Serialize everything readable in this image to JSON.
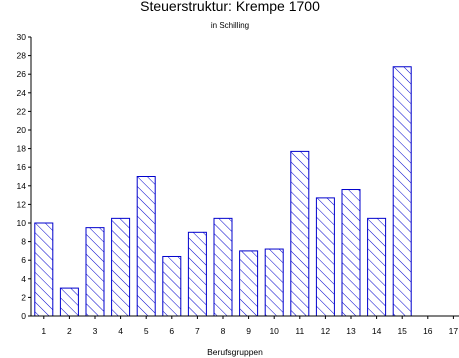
{
  "chart_data": {
    "type": "bar",
    "title": "Steuerstruktur: Krempe 1700",
    "subtitle": "in Schilling",
    "xlabel": "Berufsgruppen",
    "ylabel": "",
    "categories": [
      "1",
      "2",
      "3",
      "4",
      "5",
      "6",
      "7",
      "8",
      "9",
      "10",
      "11",
      "12",
      "13",
      "14",
      "15",
      "16",
      "17"
    ],
    "values": [
      10,
      3,
      9.5,
      10.5,
      15,
      6.4,
      9,
      10.5,
      7,
      7.2,
      17.7,
      12.7,
      13.6,
      10.5,
      26.8,
      null,
      null
    ],
    "yticks": [
      "0",
      "2",
      "4",
      "6",
      "8",
      "10",
      "12",
      "14",
      "16",
      "18",
      "20",
      "22",
      "24",
      "26",
      "28",
      "30"
    ],
    "ylim": [
      0,
      30
    ],
    "grid": false,
    "colors": {
      "bar_stroke": "#0000cc",
      "hatch": "#0000cc",
      "axis": "#000000"
    }
  }
}
